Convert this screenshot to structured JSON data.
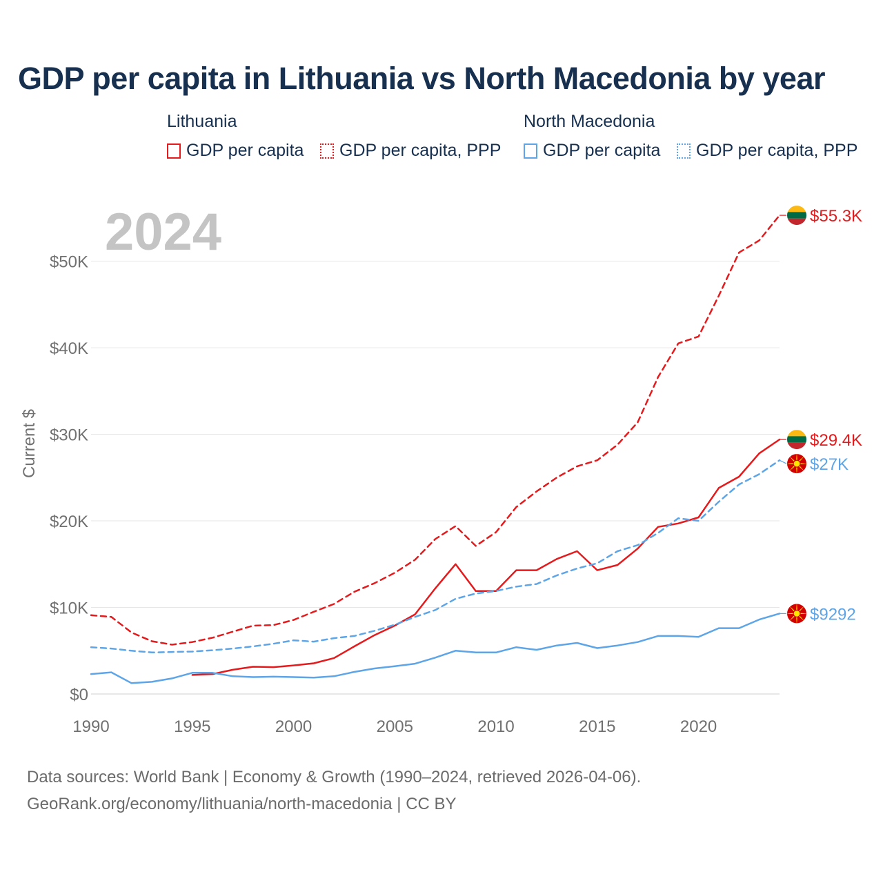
{
  "title": "GDP per capita in Lithuania vs North Macedonia by year",
  "legend": {
    "groups": [
      {
        "country": "Lithuania",
        "color": "#e41a1c",
        "items": [
          {
            "label": "GDP per capita",
            "style": "solid"
          },
          {
            "label": "GDP per capita, PPP",
            "style": "dotted"
          }
        ]
      },
      {
        "country": "North Macedonia",
        "color": "#5da5e6",
        "items": [
          {
            "label": "GDP per capita",
            "style": "solid"
          },
          {
            "label": "GDP per capita, PPP",
            "style": "dotted"
          }
        ]
      }
    ]
  },
  "chart_data": {
    "type": "line",
    "year_label": "2024",
    "ylabel": "Current $",
    "xlabel": "",
    "xlim": [
      1990,
      2024
    ],
    "ylim": [
      0,
      55000
    ],
    "x_ticks": [
      1990,
      1995,
      2000,
      2005,
      2010,
      2015,
      2020
    ],
    "y_ticks": [
      0,
      10000,
      20000,
      30000,
      40000,
      50000
    ],
    "y_tick_labels": [
      "$0",
      "$10K",
      "$20K",
      "$30K",
      "$40K",
      "$50K"
    ],
    "series": [
      {
        "name": "Lithuania GDP per capita, PPP",
        "country": "Lithuania",
        "color": "#e41a1c",
        "dash": true,
        "end_label": "$55.3K",
        "flag": "lithuania",
        "x": [
          1990,
          1991,
          1992,
          1993,
          1994,
          1995,
          1996,
          1997,
          1998,
          1999,
          2000,
          2001,
          2002,
          2003,
          2004,
          2005,
          2006,
          2007,
          2008,
          2009,
          2010,
          2011,
          2012,
          2013,
          2014,
          2015,
          2016,
          2017,
          2018,
          2019,
          2020,
          2021,
          2022,
          2023,
          2024
        ],
        "values": [
          9100,
          8900,
          7100,
          6100,
          5700,
          6000,
          6500,
          7200,
          7900,
          7950,
          8550,
          9500,
          10400,
          11800,
          12800,
          14000,
          15500,
          17900,
          19400,
          17100,
          18700,
          21600,
          23400,
          25000,
          26300,
          27000,
          28800,
          31400,
          36600,
          40500,
          41300,
          46000,
          51000,
          52400,
          55300
        ]
      },
      {
        "name": "Lithuania GDP per capita",
        "country": "Lithuania",
        "color": "#e41a1c",
        "dash": false,
        "end_label": "$29.4K",
        "flag": "lithuania",
        "x": [
          1995,
          1996,
          1997,
          1998,
          1999,
          2000,
          2001,
          2002,
          2003,
          2004,
          2005,
          2006,
          2007,
          2008,
          2009,
          2010,
          2011,
          2012,
          2013,
          2014,
          2015,
          2016,
          2017,
          2018,
          2019,
          2020,
          2021,
          2022,
          2023,
          2024
        ],
        "values": [
          2200,
          2300,
          2800,
          3150,
          3100,
          3300,
          3550,
          4150,
          5500,
          6800,
          7900,
          9200,
          12200,
          15000,
          11900,
          11900,
          14300,
          14300,
          15600,
          16500,
          14300,
          14900,
          16800,
          19300,
          19700,
          20400,
          23800,
          25100,
          27800,
          29400
        ]
      },
      {
        "name": "North Macedonia GDP per capita, PPP",
        "country": "North Macedonia",
        "color": "#5da5e6",
        "dash": true,
        "end_label": "$27K",
        "flag": "north-macedonia",
        "x": [
          1990,
          1991,
          1992,
          1993,
          1994,
          1995,
          1996,
          1997,
          1998,
          1999,
          2000,
          2001,
          2002,
          2003,
          2004,
          2005,
          2006,
          2007,
          2008,
          2009,
          2010,
          2011,
          2012,
          2013,
          2014,
          2015,
          2016,
          2017,
          2018,
          2019,
          2020,
          2021,
          2022,
          2023,
          2024
        ],
        "values": [
          5400,
          5250,
          5000,
          4800,
          4850,
          4900,
          5050,
          5250,
          5500,
          5800,
          6200,
          6050,
          6450,
          6700,
          7300,
          8000,
          8900,
          9700,
          11000,
          11600,
          11900,
          12400,
          12700,
          13700,
          14500,
          15100,
          16500,
          17200,
          18600,
          20300,
          20000,
          22200,
          24200,
          25400,
          27000
        ]
      },
      {
        "name": "North Macedonia GDP per capita",
        "country": "North Macedonia",
        "color": "#5da5e6",
        "dash": false,
        "end_label": "$9292",
        "flag": "north-macedonia",
        "x": [
          1990,
          1991,
          1992,
          1993,
          1994,
          1995,
          1996,
          1997,
          1998,
          1999,
          2000,
          2001,
          2002,
          2003,
          2004,
          2005,
          2006,
          2007,
          2008,
          2009,
          2010,
          2011,
          2012,
          2013,
          2014,
          2015,
          2016,
          2017,
          2018,
          2019,
          2020,
          2021,
          2022,
          2023,
          2024
        ],
        "values": [
          2300,
          2500,
          1250,
          1400,
          1800,
          2450,
          2450,
          2050,
          1950,
          2000,
          1950,
          1900,
          2050,
          2550,
          2950,
          3200,
          3500,
          4200,
          5000,
          4800,
          4800,
          5400,
          5100,
          5600,
          5900,
          5300,
          5600,
          6000,
          6700,
          6700,
          6600,
          7600,
          7600,
          8600,
          9292
        ]
      }
    ]
  },
  "footer": {
    "line1": "Data sources: World Bank | Economy & Growth (1990–2024, retrieved 2026-04-06).",
    "line2": "GeoRank.org/economy/lithuania/north-macedonia | CC BY"
  }
}
